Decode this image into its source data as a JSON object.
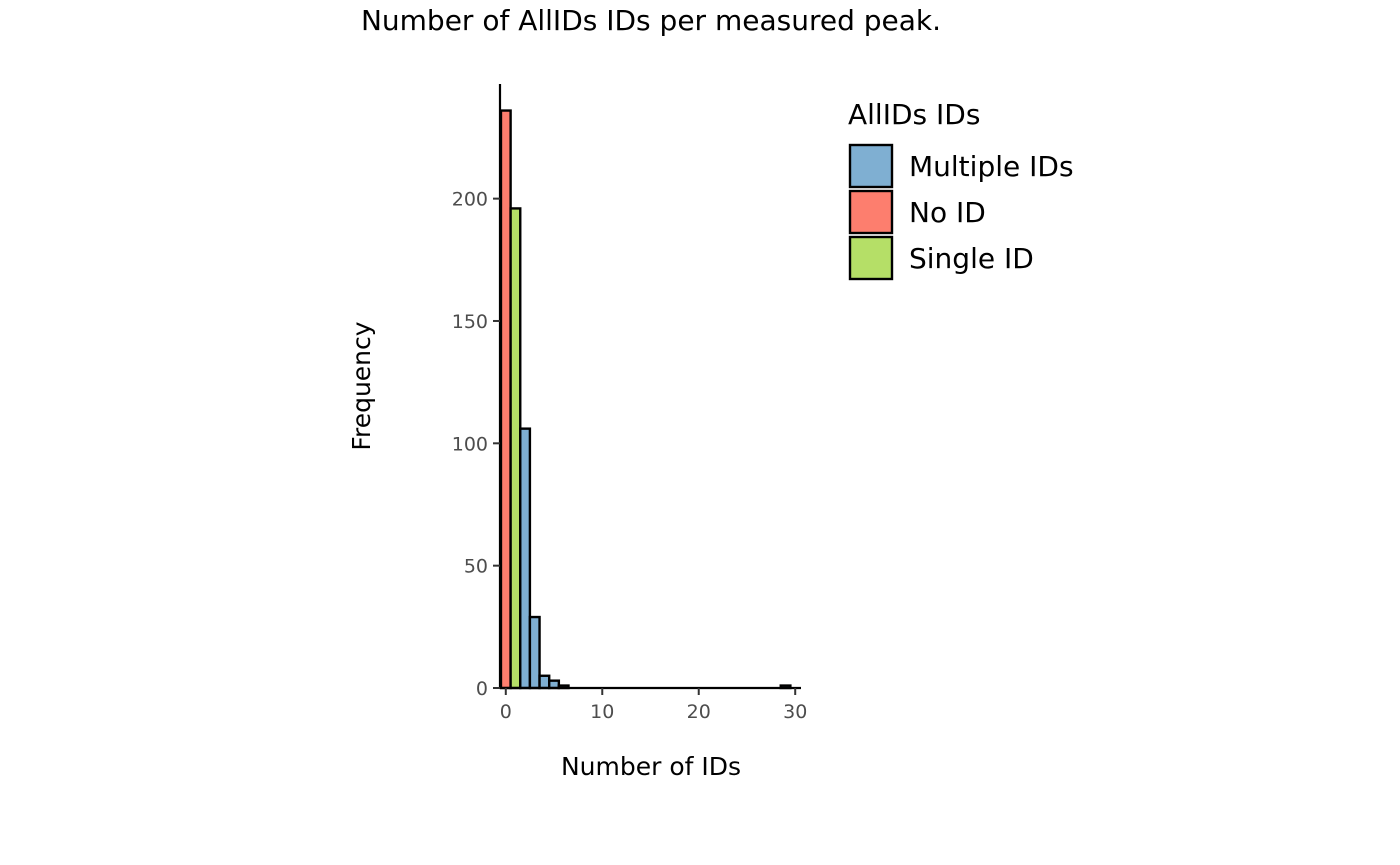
{
  "chart_data": {
    "type": "bar",
    "title": "Number of AllIDs IDs per measured peak.",
    "xlabel": "Number of IDs",
    "ylabel": "Frequency",
    "xlim": [
      -0.6,
      30.6
    ],
    "ylim": [
      0,
      235
    ],
    "x_ticks": [
      0,
      10,
      20,
      30
    ],
    "y_ticks": [
      0,
      50,
      100,
      150,
      200
    ],
    "grid": false,
    "legend": {
      "title": "AllIDs IDs",
      "position": "right",
      "entries": [
        {
          "label": "Multiple IDs",
          "color": "#7fafd2"
        },
        {
          "label": "No ID",
          "color": "#fd7e6e"
        },
        {
          "label": "Single ID",
          "color": "#b5df67"
        }
      ]
    },
    "bar_width": 1,
    "bars": [
      {
        "x": 0,
        "value": 236,
        "group": "No ID"
      },
      {
        "x": 1,
        "value": 196,
        "group": "Single ID"
      },
      {
        "x": 2,
        "value": 106,
        "group": "Multiple IDs"
      },
      {
        "x": 3,
        "value": 29,
        "group": "Multiple IDs"
      },
      {
        "x": 4,
        "value": 5,
        "group": "Multiple IDs"
      },
      {
        "x": 5,
        "value": 3,
        "group": "Multiple IDs"
      },
      {
        "x": 6,
        "value": 1,
        "group": "Multiple IDs"
      },
      {
        "x": 7,
        "value": 0,
        "group": "Multiple IDs"
      },
      {
        "x": 8,
        "value": 0,
        "group": "Multiple IDs"
      },
      {
        "x": 9,
        "value": 0,
        "group": "Multiple IDs"
      },
      {
        "x": 10,
        "value": 0,
        "group": "Multiple IDs"
      },
      {
        "x": 11,
        "value": 0,
        "group": "Multiple IDs"
      },
      {
        "x": 12,
        "value": 0,
        "group": "Multiple IDs"
      },
      {
        "x": 13,
        "value": 0,
        "group": "Multiple IDs"
      },
      {
        "x": 14,
        "value": 0,
        "group": "Multiple IDs"
      },
      {
        "x": 15,
        "value": 0,
        "group": "Multiple IDs"
      },
      {
        "x": 16,
        "value": 0,
        "group": "Multiple IDs"
      },
      {
        "x": 17,
        "value": 0,
        "group": "Multiple IDs"
      },
      {
        "x": 18,
        "value": 0,
        "group": "Multiple IDs"
      },
      {
        "x": 19,
        "value": 0,
        "group": "Multiple IDs"
      },
      {
        "x": 20,
        "value": 0,
        "group": "Multiple IDs"
      },
      {
        "x": 21,
        "value": 0,
        "group": "Multiple IDs"
      },
      {
        "x": 22,
        "value": 0,
        "group": "Multiple IDs"
      },
      {
        "x": 23,
        "value": 0,
        "group": "Multiple IDs"
      },
      {
        "x": 24,
        "value": 0,
        "group": "Multiple IDs"
      },
      {
        "x": 25,
        "value": 0,
        "group": "Multiple IDs"
      },
      {
        "x": 26,
        "value": 0,
        "group": "Multiple IDs"
      },
      {
        "x": 27,
        "value": 0,
        "group": "Multiple IDs"
      },
      {
        "x": 28,
        "value": 0,
        "group": "Multiple IDs"
      },
      {
        "x": 29,
        "value": 1,
        "group": "Multiple IDs"
      }
    ]
  }
}
